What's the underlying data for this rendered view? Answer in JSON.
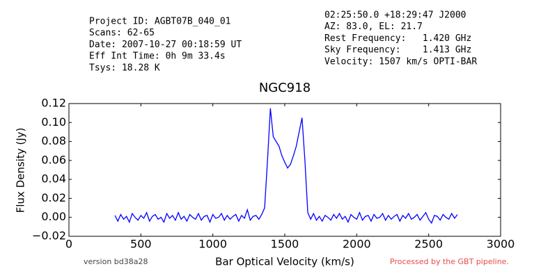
{
  "chart_data": {
    "type": "line",
    "header_left": [
      "Project ID: AGBT07B_040_01",
      "Scans: 62-65",
      "Date: 2007-10-27 00:18:59 UT",
      "Eff Int Time: 0h 9m 33.4s",
      "Tsys: 18.28 K"
    ],
    "header_right": [
      "02:25:50.0 +18:29:47 J2000",
      "AZ: 83.0, EL: 21.7",
      "Rest Frequency:   1.420 GHz",
      "Sky Frequency:    1.413 GHz",
      "Velocity: 1507 km/s OPTI-BAR"
    ],
    "title": "NGC918",
    "xlabel": "Bar Optical Velocity (km/s)",
    "ylabel": "Flux Density (Jy)",
    "footer_left": "version bd38a28",
    "footer_right": "Processed by the GBT pipeline.",
    "xlim": [
      0,
      3000
    ],
    "xticks": [
      0,
      500,
      1000,
      1500,
      2000,
      2500,
      3000
    ],
    "ylim": [
      -0.02,
      0.12
    ],
    "yticks": [
      {
        "value": -0.02,
        "label": "−0.02"
      },
      {
        "value": 0,
        "label": "0.00"
      },
      0.02,
      0.04,
      0.06,
      0.08,
      {
        "value": 0.1,
        "label": "0.10"
      },
      0.12
    ],
    "x": [
      320,
      340,
      360,
      380,
      400,
      420,
      440,
      460,
      480,
      500,
      520,
      540,
      560,
      580,
      600,
      620,
      640,
      660,
      680,
      700,
      720,
      740,
      760,
      780,
      800,
      820,
      840,
      860,
      880,
      900,
      920,
      940,
      960,
      980,
      1000,
      1020,
      1040,
      1060,
      1080,
      1100,
      1120,
      1140,
      1160,
      1180,
      1200,
      1220,
      1240,
      1260,
      1280,
      1300,
      1320,
      1340,
      1360,
      1380,
      1400,
      1420,
      1440,
      1460,
      1480,
      1500,
      1520,
      1540,
      1560,
      1580,
      1600,
      1620,
      1640,
      1660,
      1680,
      1700,
      1720,
      1740,
      1760,
      1780,
      1800,
      1820,
      1840,
      1860,
      1880,
      1900,
      1920,
      1940,
      1960,
      1980,
      2000,
      2020,
      2040,
      2060,
      2080,
      2100,
      2120,
      2140,
      2160,
      2180,
      2200,
      2220,
      2240,
      2260,
      2280,
      2300,
      2320,
      2340,
      2360,
      2380,
      2400,
      2420,
      2440,
      2460,
      2480,
      2500,
      2520,
      2540,
      2560,
      2580,
      2600,
      2620,
      2640,
      2660,
      2680,
      2700
    ],
    "series": [
      {
        "color": "#0000ff",
        "values": [
          0.002,
          -0.004,
          0.003,
          -0.002,
          0.001,
          -0.005,
          0.004,
          0.0,
          -0.003,
          0.002,
          -0.001,
          0.005,
          -0.004,
          0.001,
          0.003,
          -0.002,
          0.0,
          -0.005,
          0.004,
          -0.001,
          0.002,
          -0.003,
          0.005,
          -0.002,
          0.001,
          -0.004,
          0.003,
          0.0,
          -0.002,
          0.004,
          -0.003,
          0.001,
          0.002,
          -0.005,
          0.003,
          -0.001,
          0.0,
          0.004,
          -0.003,
          0.002,
          -0.002,
          0.001,
          0.003,
          -0.004,
          0.002,
          -0.001,
          0.008,
          -0.003,
          0.001,
          0.002,
          -0.002,
          0.003,
          0.01,
          0.06,
          0.115,
          0.085,
          0.08,
          0.075,
          0.065,
          0.058,
          0.052,
          0.056,
          0.065,
          0.075,
          0.09,
          0.105,
          0.06,
          0.005,
          -0.002,
          0.004,
          -0.003,
          0.001,
          -0.004,
          0.002,
          0.0,
          -0.003,
          0.003,
          -0.001,
          0.004,
          -0.002,
          0.001,
          -0.005,
          0.003,
          0.0,
          -0.002,
          0.005,
          -0.003,
          0.001,
          0.002,
          -0.004,
          0.003,
          -0.001,
          0.0,
          0.004,
          -0.003,
          0.002,
          -0.002,
          0.001,
          0.003,
          -0.004,
          0.002,
          -0.001,
          0.004,
          -0.002,
          0.0,
          0.003,
          -0.003,
          0.001,
          0.005,
          -0.002,
          -0.006,
          0.002,
          0.001,
          -0.003,
          0.003,
          0.0,
          -0.002,
          0.004,
          -0.001,
          0.003
        ]
      }
    ]
  }
}
